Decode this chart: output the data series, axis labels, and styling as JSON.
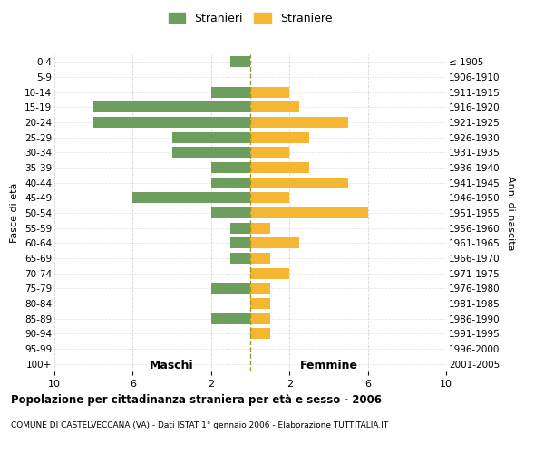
{
  "age_groups": [
    "0-4",
    "5-9",
    "10-14",
    "15-19",
    "20-24",
    "25-29",
    "30-34",
    "35-39",
    "40-44",
    "45-49",
    "50-54",
    "55-59",
    "60-64",
    "65-69",
    "70-74",
    "75-79",
    "80-84",
    "85-89",
    "90-94",
    "95-99",
    "100+"
  ],
  "birth_years": [
    "2001-2005",
    "1996-2000",
    "1991-1995",
    "1986-1990",
    "1981-1985",
    "1976-1980",
    "1971-1975",
    "1966-1970",
    "1961-1965",
    "1956-1960",
    "1951-1955",
    "1946-1950",
    "1941-1945",
    "1936-1940",
    "1931-1935",
    "1926-1930",
    "1921-1925",
    "1916-1920",
    "1911-1915",
    "1906-1910",
    "≤ 1905"
  ],
  "maschi": [
    1,
    0,
    2,
    8,
    8,
    4,
    4,
    2,
    2,
    6,
    2,
    1,
    1,
    1,
    0,
    2,
    0,
    2,
    0,
    0,
    0
  ],
  "femmine": [
    0,
    0,
    2,
    2.5,
    5,
    3,
    2,
    3,
    5,
    2,
    6,
    1,
    2.5,
    1,
    2,
    1,
    1,
    1,
    1,
    0,
    0
  ],
  "color_maschi": "#6d9e5e",
  "color_femmine": "#f5b731",
  "background_color": "#ffffff",
  "grid_color": "#cccccc",
  "dashed_line_color": "#999933",
  "title": "Popolazione per cittadinanza straniera per età e sesso - 2006",
  "subtitle": "COMUNE DI CASTELVECCANA (VA) - Dati ISTAT 1° gennaio 2006 - Elaborazione TUTTITALIA.IT",
  "ylabel_left": "Fasce di età",
  "ylabel_right": "Anni di nascita",
  "xlabel_left": "Maschi",
  "xlabel_right": "Femmine",
  "legend_stranieri": "Stranieri",
  "legend_straniere": "Straniere"
}
